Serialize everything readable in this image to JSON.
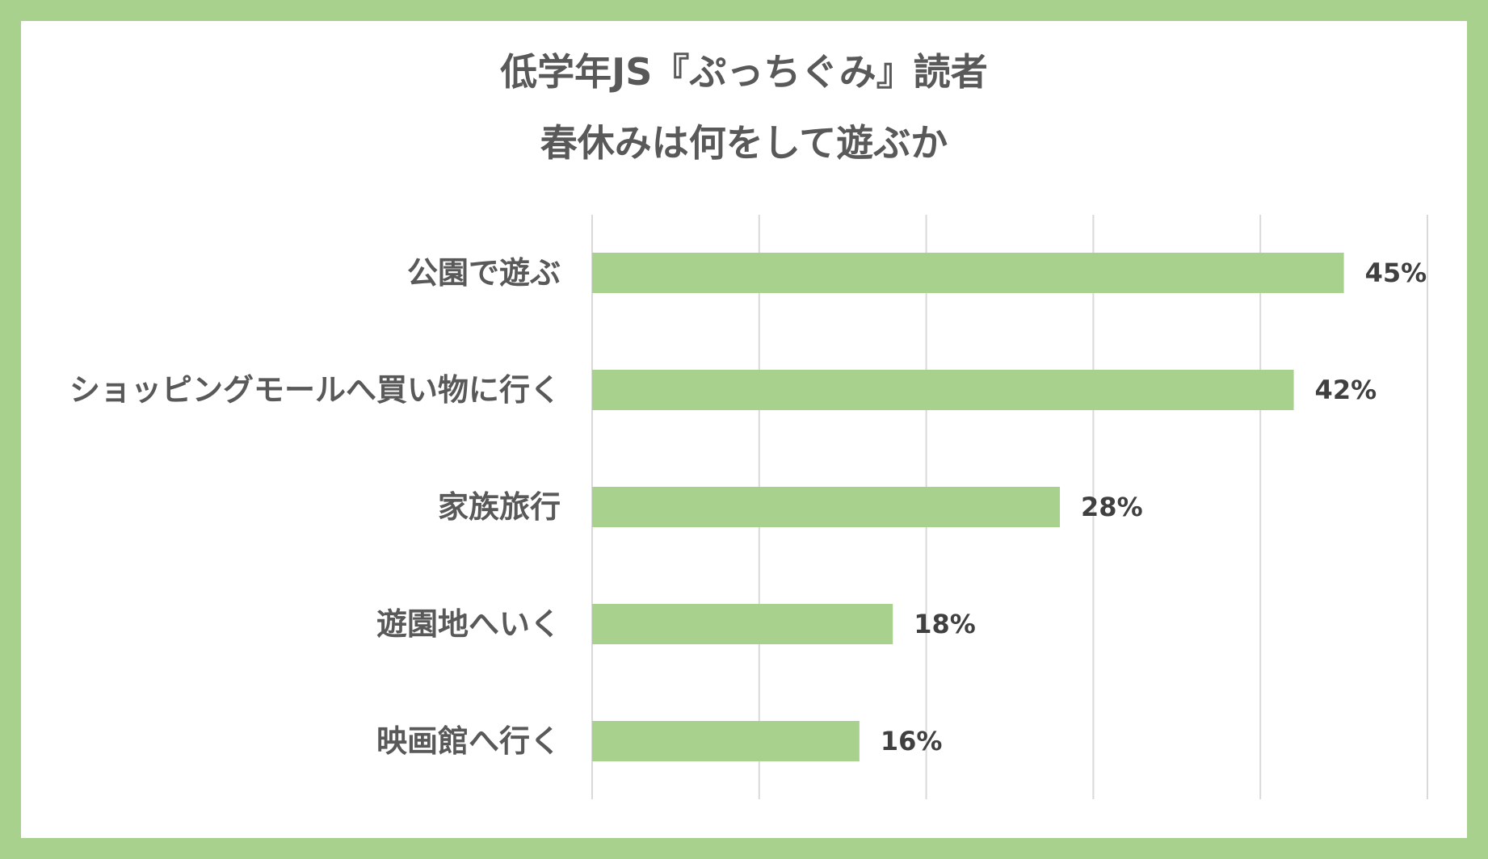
{
  "colors": {
    "frame": "#a9d18e",
    "bar": "#a9d18e",
    "grid": "#d9d9d9",
    "text": "#595959",
    "value_text": "#404040",
    "background": "#ffffff"
  },
  "chart_data": {
    "type": "bar",
    "orientation": "horizontal",
    "title": "低学年JS『ぷっちぐみ』読者",
    "subtitle": "春休みは何をして遊ぶか",
    "categories": [
      "公園で遊ぶ",
      "ショッピングモールへ買い物に行く",
      "家族旅行",
      "遊園地へいく",
      "映画館へ行く"
    ],
    "values": [
      45,
      42,
      28,
      18,
      16
    ],
    "value_labels": [
      "45%",
      "42%",
      "28%",
      "18%",
      "16%"
    ],
    "unit": "%",
    "xlim": [
      0,
      50
    ],
    "grid_step": 10,
    "grid": true,
    "legend": "none",
    "xlabel": "",
    "ylabel": ""
  }
}
